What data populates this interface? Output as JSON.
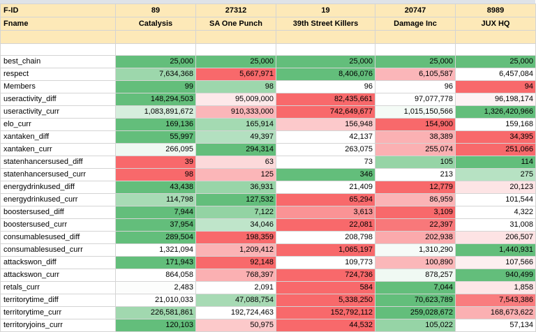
{
  "header": {
    "id_label": "F-ID",
    "name_label": "Fname",
    "factions": [
      {
        "id": "89",
        "name": "Catalysis"
      },
      {
        "id": "27312",
        "name": "SA One Punch"
      },
      {
        "id": "19",
        "name": "39th Street Killers"
      },
      {
        "id": "20747",
        "name": "Damage Inc"
      },
      {
        "id": "8989",
        "name": "JUX HQ"
      }
    ]
  },
  "rows": [
    {
      "label": "best_chain",
      "values": [
        "25,000",
        "25,000",
        "25,000",
        "25,000",
        "25,000"
      ],
      "colors": [
        "#63be7b",
        "#63be7b",
        "#63be7b",
        "#63be7b",
        "#63be7b"
      ]
    },
    {
      "label": "respect",
      "values": [
        "7,634,368",
        "5,667,971",
        "8,406,076",
        "6,105,587",
        "6,457,084"
      ],
      "colors": [
        "#9dd7ac",
        "#f8696b",
        "#63be7b",
        "#fbb6b9",
        "#ffffff"
      ]
    },
    {
      "label": "Members",
      "values": [
        "99",
        "98",
        "96",
        "96",
        "94"
      ],
      "colors": [
        "#63be7b",
        "#9dd7ac",
        "#ffffff",
        "#ffffff",
        "#f8696b"
      ]
    },
    {
      "label": "useractivity_diff",
      "values": [
        "148,294,503",
        "95,009,000",
        "82,435,661",
        "97,077,778",
        "96,198,174"
      ],
      "colors": [
        "#63be7b",
        "#fde9ea",
        "#f8696b",
        "#ffffff",
        "#fdf3f4"
      ]
    },
    {
      "label": "useractivity_curr",
      "values": [
        "1,083,891,672",
        "910,333,000",
        "742,649,677",
        "1,015,150,566",
        "1,326,420,966"
      ],
      "colors": [
        "#d6eedd",
        "#fbb6b9",
        "#f8696b",
        "#f4fbf6",
        "#63be7b"
      ]
    },
    {
      "label": "elo_curr",
      "values": [
        "169,136",
        "165,914",
        "156,948",
        "154,900",
        "159,168"
      ],
      "colors": [
        "#63be7b",
        "#a4dab2",
        "#fcc9cb",
        "#f8696b",
        "#ffffff"
      ]
    },
    {
      "label": "xantaken_diff",
      "values": [
        "55,997",
        "49,397",
        "42,137",
        "38,389",
        "34,395"
      ],
      "colors": [
        "#63be7b",
        "#b3e0c0",
        "#ffffff",
        "#fbb1b3",
        "#f8696b"
      ]
    },
    {
      "label": "xantaken_curr",
      "values": [
        "266,095",
        "294,314",
        "263,075",
        "255,074",
        "251,066"
      ],
      "colors": [
        "#eff9f2",
        "#63be7b",
        "#ffffff",
        "#fbb0b2",
        "#f8696b"
      ]
    },
    {
      "label": "statenhancersused_diff",
      "values": [
        "39",
        "63",
        "73",
        "105",
        "114"
      ],
      "colors": [
        "#f8696b",
        "#fcd9da",
        "#ffffff",
        "#96d4a6",
        "#63be7b"
      ]
    },
    {
      "label": "statenhancersused_curr",
      "values": [
        "98",
        "125",
        "346",
        "213",
        "275"
      ],
      "colors": [
        "#f8696b",
        "#fbb6b8",
        "#63be7b",
        "#ffffff",
        "#b7e2c3"
      ]
    },
    {
      "label": "energydrinkused_diff",
      "values": [
        "43,438",
        "36,931",
        "21,409",
        "12,779",
        "20,123"
      ],
      "colors": [
        "#63be7b",
        "#98d5a8",
        "#ffffff",
        "#f8696b",
        "#fde4e5"
      ]
    },
    {
      "label": "energydrinkused_curr",
      "values": [
        "114,798",
        "127,532",
        "65,294",
        "86,959",
        "101,544"
      ],
      "colors": [
        "#a8dbb5",
        "#63be7b",
        "#f8696b",
        "#fbb4b6",
        "#ffffff"
      ]
    },
    {
      "label": "boostersused_diff",
      "values": [
        "7,944",
        "7,122",
        "3,613",
        "3,109",
        "4,322"
      ],
      "colors": [
        "#63be7b",
        "#93d3a3",
        "#fa9395",
        "#f8696b",
        "#ffffff"
      ]
    },
    {
      "label": "boostersused_curr",
      "values": [
        "37,954",
        "34,046",
        "22,081",
        "22,397",
        "31,008"
      ],
      "colors": [
        "#63be7b",
        "#bfe5ca",
        "#f8696b",
        "#f8787a",
        "#ffffff"
      ]
    },
    {
      "label": "consumablesused_diff",
      "values": [
        "289,504",
        "198,359",
        "208,798",
        "202,938",
        "206,507"
      ],
      "colors": [
        "#63be7b",
        "#f8696b",
        "#ffffff",
        "#fbaaac",
        "#fde3e4"
      ]
    },
    {
      "label": "consumablesused_curr",
      "values": [
        "1,321,094",
        "1,209,412",
        "1,065,197",
        "1,310,290",
        "1,440,931"
      ],
      "colors": [
        "#ffffff",
        "#fbb3b5",
        "#f8696b",
        "#f6fbf8",
        "#63be7b"
      ]
    },
    {
      "label": "attackswon_diff",
      "values": [
        "171,943",
        "92,148",
        "109,773",
        "100,890",
        "107,566"
      ],
      "colors": [
        "#63be7b",
        "#f8696b",
        "#ffffff",
        "#fbb7b9",
        "#fdeff0"
      ]
    },
    {
      "label": "attackswon_curr",
      "values": [
        "864,058",
        "768,397",
        "724,736",
        "878,257",
        "940,499"
      ],
      "colors": [
        "#ffffff",
        "#fbb0b2",
        "#f8696b",
        "#f0f9f3",
        "#63be7b"
      ]
    },
    {
      "label": "retals_curr",
      "values": [
        "2,483",
        "2,091",
        "584",
        "7,044",
        "1,858"
      ],
      "colors": [
        "#fcfdfc",
        "#ffffff",
        "#f8696b",
        "#63be7b",
        "#fde6e7"
      ]
    },
    {
      "label": "territorytime_diff",
      "values": [
        "21,010,033",
        "47,088,754",
        "5,338,250",
        "70,623,789",
        "7,543,386"
      ],
      "colors": [
        "#ffffff",
        "#a7dab4",
        "#f8696b",
        "#63be7b",
        "#f97c7e"
      ]
    },
    {
      "label": "territorytime_curr",
      "values": [
        "226,581,861",
        "192,724,463",
        "152,792,112",
        "259,028,672",
        "168,673,622"
      ],
      "colors": [
        "#a1d8af",
        "#ffffff",
        "#f8696b",
        "#63be7b",
        "#fbb0b2"
      ]
    },
    {
      "label": "territoryjoins_curr",
      "values": [
        "120,103",
        "50,975",
        "44,532",
        "105,022",
        "57,134"
      ],
      "colors": [
        "#63be7b",
        "#fcc9ca",
        "#f8696b",
        "#96d4a6",
        "#ffffff"
      ]
    }
  ]
}
